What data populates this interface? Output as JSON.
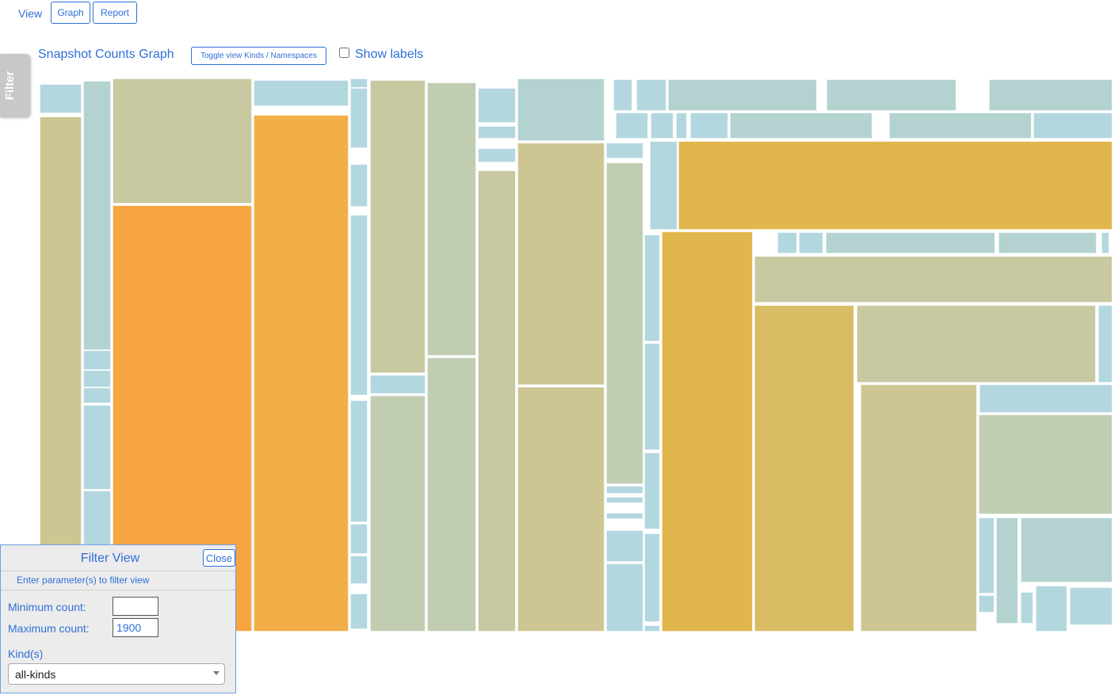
{
  "nav": {
    "view_label": "View",
    "graph_label": "Graph",
    "report_label": "Report"
  },
  "filter_tab": {
    "label": "Filter"
  },
  "graph": {
    "title": "Snapshot Counts Graph",
    "toggle_label": "Toggle view Kinds / Namespaces",
    "show_labels_label": "Show labels",
    "show_labels_checked": false
  },
  "colors": {
    "blue": "#b3d7df",
    "teal": "#b4d3d0",
    "sage": "#c0cdb1",
    "olive": "#c8c9a1",
    "khaki": "#cdc693",
    "gold": "#e1b64c",
    "mustard": "#d9bc63",
    "orange": "#f6a540",
    "orange2": "#f2af47"
  },
  "filter_panel": {
    "title": "Filter View",
    "close_label": "Close",
    "hint": "Enter parameter(s) to filter view",
    "min_label": "Minimum count:",
    "min_value": "",
    "max_label": "Maximum count:",
    "max_value": "1900",
    "kinds_label": "Kind(s)",
    "kinds_selected": "all-kinds"
  }
}
